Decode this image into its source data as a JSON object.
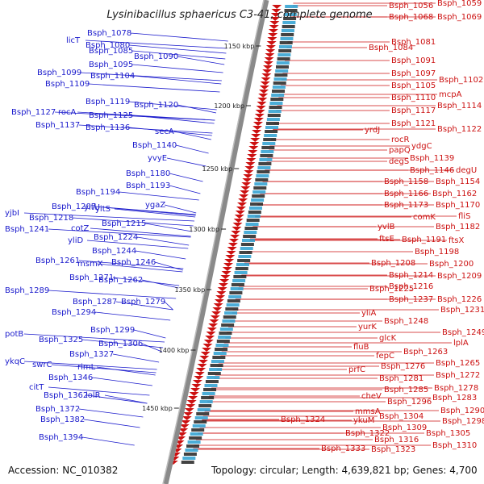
{
  "title": "Lysinibacillus sphaericus C3-41, complete genome",
  "footer": {
    "accession": "Accession: NC_010382",
    "summary": "Topology: circular; Length: 4,639,821 bp; Genes: 4,700"
  },
  "colors": {
    "forward": "#cc1111",
    "reverse": "#1a1acc",
    "backbone": "#8a8a8a",
    "tick": "#2a7a2a"
  },
  "ticks": [
    "1150 kbp",
    "1200 kbp",
    "1250 kbp",
    "1300 kbp",
    "1350 kbp",
    "1400 kbp",
    "1450 kbp"
  ],
  "left_labels": [
    "licT",
    "Bsph_1080",
    "Bsph_1078",
    "Bsph_1085",
    "Bsph_1090",
    "Bsph_1095",
    "Bsph_1099",
    "Bsph_1104",
    "Bsph_1109",
    "Bsph_1119",
    "Bsph_1120",
    "Bsph_1127",
    "rocA",
    "Bsph_1125",
    "Bsph_1137",
    "Bsph_1136",
    "secA",
    "Bsph_1140",
    "yvyE",
    "Bsph_1180",
    "Bsph_1193",
    "Bsph_1194",
    "ygaZ",
    "yjbI",
    "Bsph_1207",
    "yitU",
    "yitS",
    "Bsph_1218",
    "Bsph_1215",
    "Bsph_1241",
    "cotZ",
    "Bsph_1224",
    "yliD",
    "Bsph_1244",
    "Bsph_1261",
    "msmX",
    "Bsph_1246",
    "Bsph_1271",
    "Bsph_1262",
    "Bsph_1289",
    "Bsph_1287",
    "Bsph_1279",
    "Bsph_1294",
    "Bsph_1299",
    "potB",
    "Bsph_1325",
    "Bsph_1306",
    "Bsph_1327",
    "ykqC",
    "swrC",
    "rimL",
    "Bsph_1346",
    "citT",
    "Bsph_1362",
    "iolR",
    "Bsph_1372",
    "Bsph_1382",
    "Bsph_1394"
  ],
  "right_labels": [
    "Bsph_1056",
    "Bsph_1059",
    "Bsph_1068",
    "Bsph_1069",
    "Bsph_1081",
    "Bsph_1084",
    "Bsph_1091",
    "Bsph_1097",
    "Bsph_1102",
    "Bsph_1105",
    "mcpA",
    "Bsph_1110",
    "Bsph_1117",
    "Bsph_1114",
    "Bsph_1121",
    "yrdJ",
    "Bsph_1122",
    "rocR",
    "ydgC",
    "papQ",
    "Bsph_1139",
    "degS",
    "Bsph_1146",
    "degU",
    "Bsph_1158",
    "Bsph_1154",
    "Bsph_1166",
    "Bsph_1162",
    "Bsph_1173",
    "Bsph_1170",
    "comK",
    "fliS",
    "yvlB",
    "Bsph_1182",
    "ftsE",
    "Bsph_1191",
    "ftsX",
    "Bsph_1198",
    "Bsph_1208",
    "Bsph_1200",
    "Bsph_1214",
    "Bsph_1209",
    "Bsph_1216",
    "Bsph_1225",
    "Bsph_1237",
    "Bsph_1226",
    "Bsph_1231",
    "yliA",
    "Bsph_1248",
    "yurK",
    "Bsph_1249",
    "glcK",
    "lplA",
    "fluB",
    "Bsph_1263",
    "fepC",
    "Bsph_1265",
    "prfC",
    "Bsph_1276",
    "Bsph_1272",
    "Bsph_1281",
    "Bsph_1278",
    "Bsph_1285",
    "Bsph_1283",
    "cheV",
    "Bsph_1296",
    "Bsph_1290",
    "mmsA",
    "Bsph_1304",
    "Bsph_1298",
    "Bsph_1324",
    "ykuM",
    "Bsph_1309",
    "Bsph_1322",
    "Bsph_1305",
    "Bsph_1316",
    "Bsph_1310",
    "Bsph_1333",
    "Bsph_1323"
  ]
}
